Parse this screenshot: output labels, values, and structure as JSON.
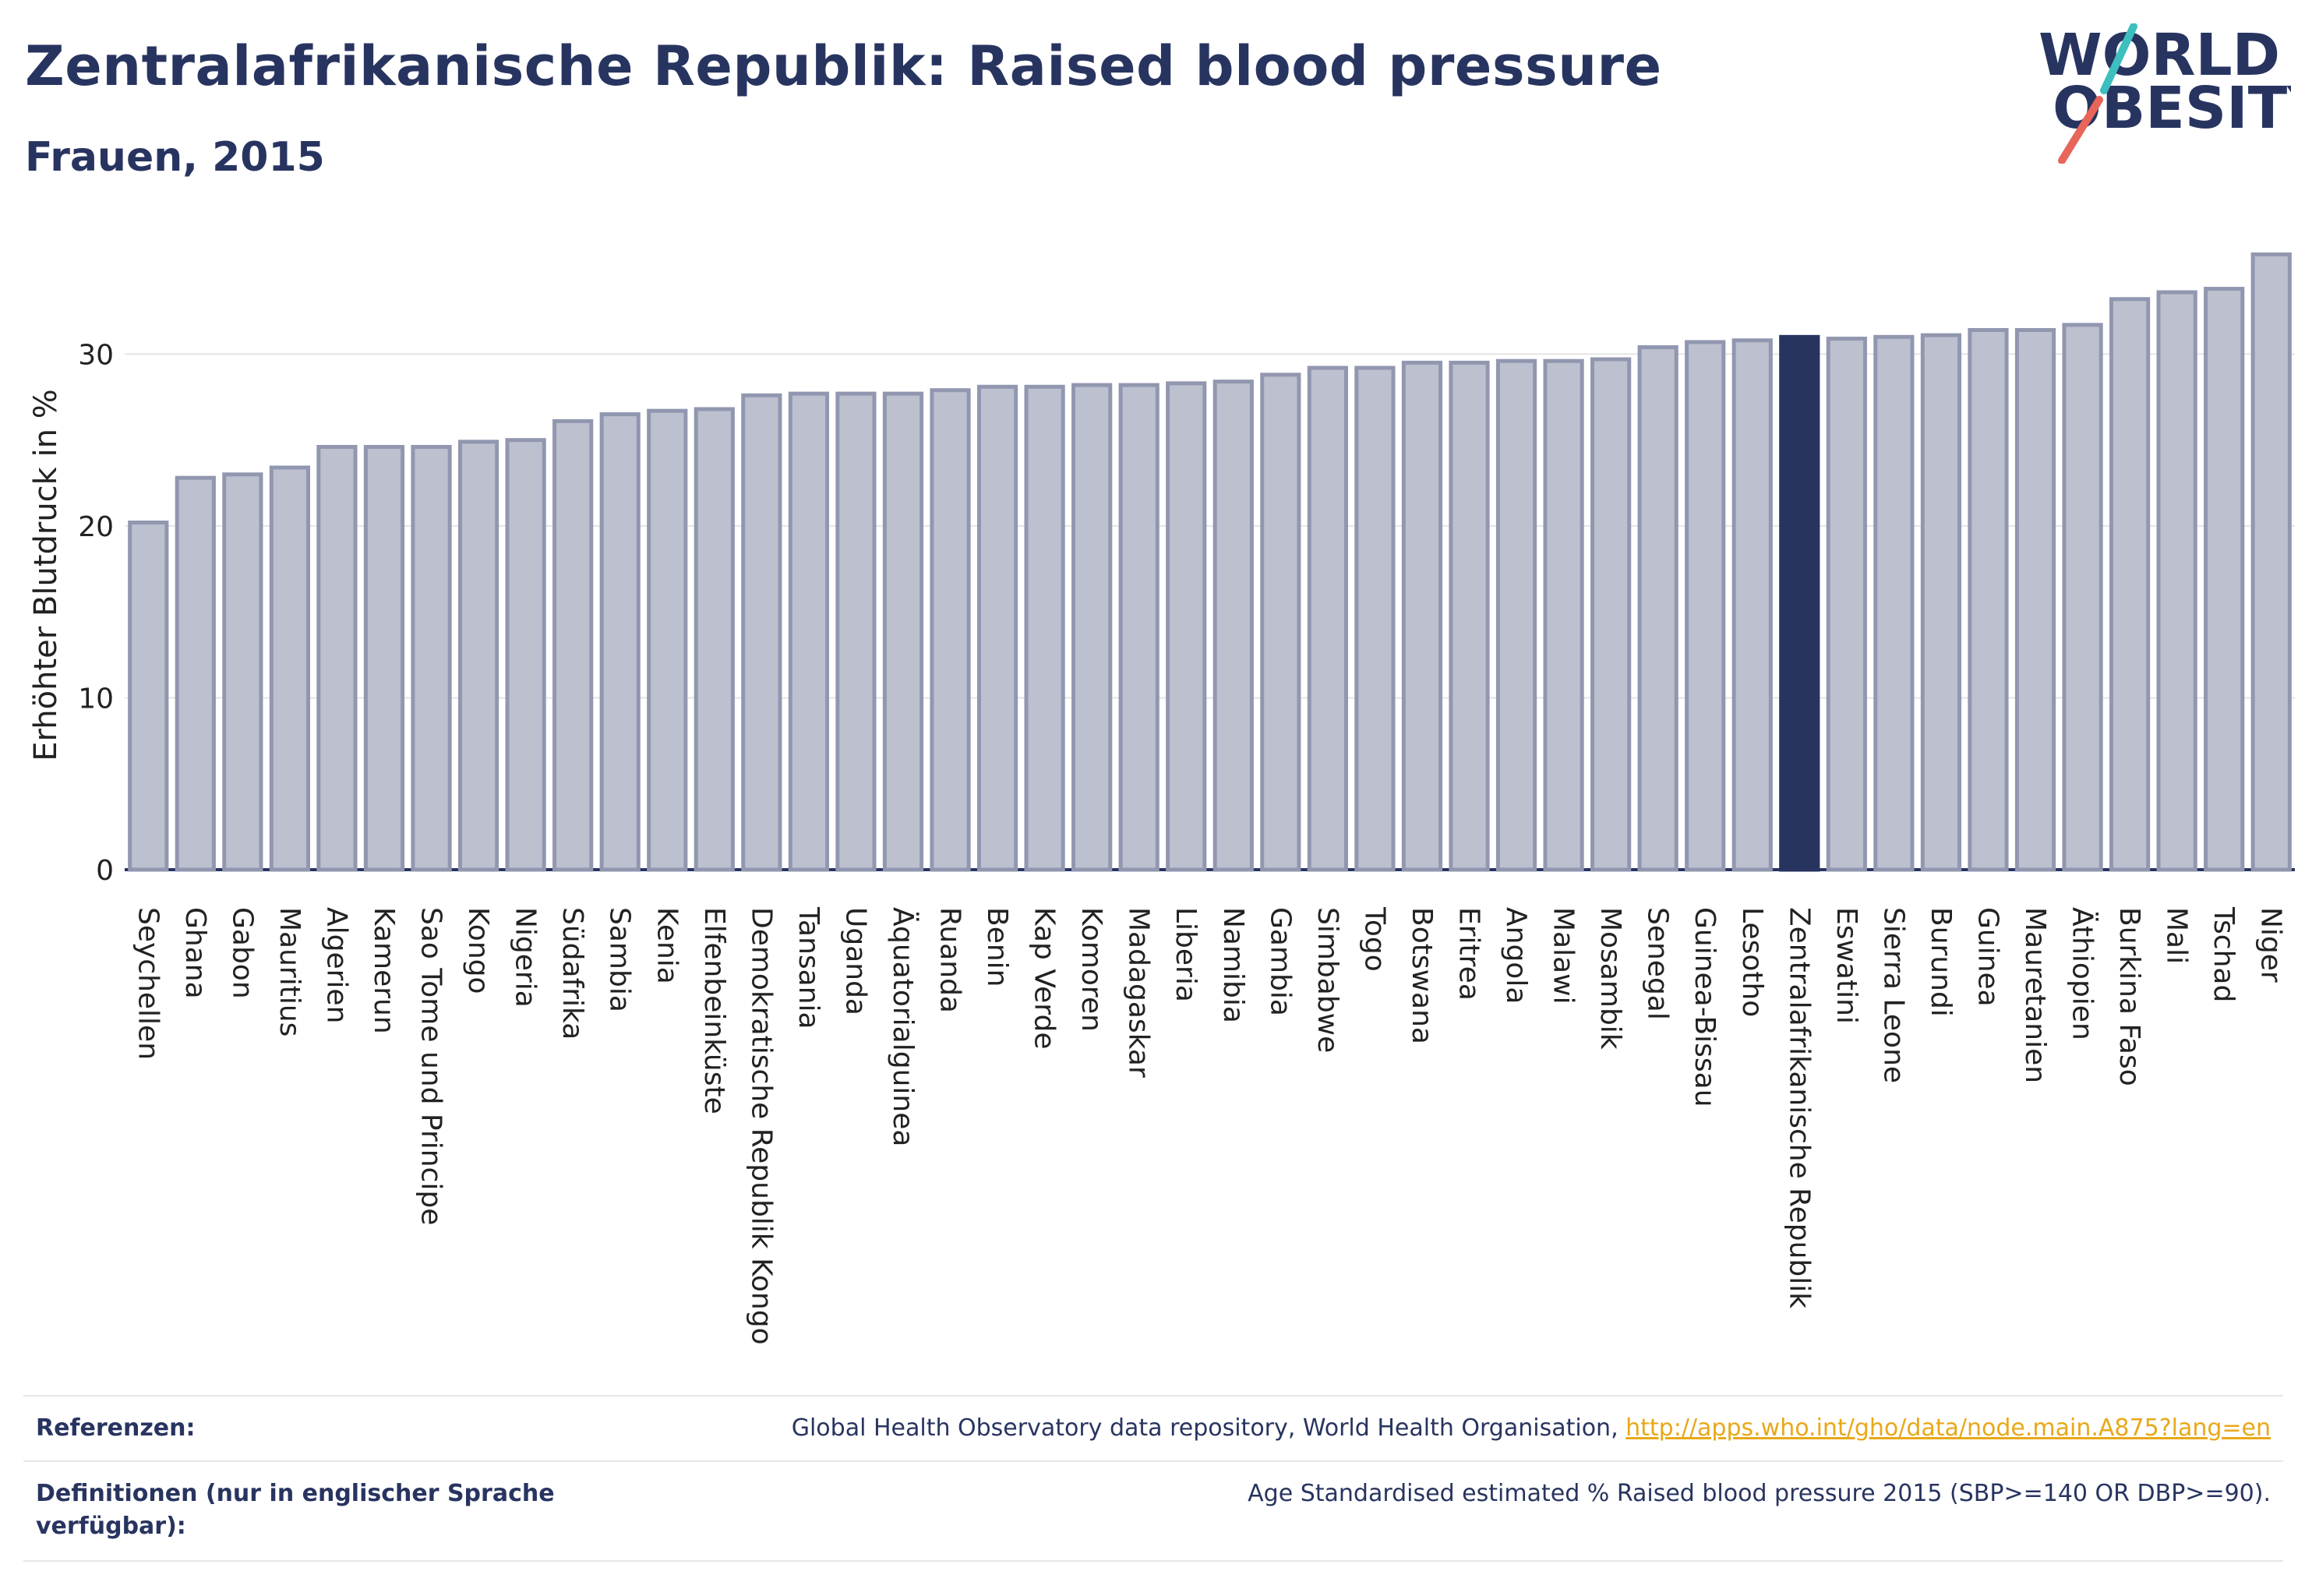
{
  "header": {
    "title": "Zentralafrikanische Republik: Raised blood pressure",
    "subtitle": "Frauen, 2015"
  },
  "logo": {
    "line1": "WORLD",
    "line2": "OBESITY",
    "accent_teal": "#3ebfbf",
    "accent_red": "#e8655a"
  },
  "colors": {
    "bar": "#bcc0cf",
    "bar_border": "#9297b0",
    "highlight": "#283460"
  },
  "chart_data": {
    "type": "bar",
    "ylabel": "Erhöhter Blutdruck in %",
    "ylim": [
      0,
      37
    ],
    "yticks": [
      0,
      10,
      20,
      30
    ],
    "grid": true,
    "highlight": "Zentralafrikanische Republik",
    "categories": [
      "Seychellen",
      "Ghana",
      "Gabon",
      "Mauritius",
      "Algerien",
      "Kamerun",
      "Sao Tome und Principe",
      "Kongo",
      "Nigeria",
      "Südafrika",
      "Sambia",
      "Kenia",
      "Elfenbeinküste",
      "Demokratische Republik Kongo",
      "Tansania",
      "Uganda",
      "Äquatorialguinea",
      "Ruanda",
      "Benin",
      "Kap Verde",
      "Komoren",
      "Madagaskar",
      "Liberia",
      "Namibia",
      "Gambia",
      "Simbabwe",
      "Togo",
      "Botswana",
      "Eritrea",
      "Angola",
      "Malawi",
      "Mosambik",
      "Senegal",
      "Guinea-Bissau",
      "Lesotho",
      "Zentralafrikanische Republik",
      "Eswatini",
      "Sierra Leone",
      "Burundi",
      "Guinea",
      "Mauretanien",
      "Äthiopien",
      "Burkina Faso",
      "Mali",
      "Tschad",
      "Niger"
    ],
    "values": [
      20.2,
      22.8,
      23.0,
      23.4,
      24.6,
      24.6,
      24.6,
      24.9,
      25.0,
      26.1,
      26.5,
      26.7,
      26.8,
      27.6,
      27.7,
      27.7,
      27.7,
      27.9,
      28.1,
      28.1,
      28.2,
      28.2,
      28.3,
      28.4,
      28.8,
      29.2,
      29.2,
      29.5,
      29.5,
      29.6,
      29.6,
      29.7,
      30.4,
      30.7,
      30.8,
      31.0,
      30.9,
      31.0,
      31.1,
      31.4,
      31.4,
      31.7,
      33.2,
      33.6,
      33.8,
      35.8
    ]
  },
  "footer": {
    "ref_label": "Referenzen:",
    "ref_text": "Global Health Observatory data repository, World Health Organisation, ",
    "ref_link": "http://apps.who.int/gho/data/node.main.A875?lang=en",
    "def_label": "Definitionen (nur in englischer Sprache verfügbar):",
    "def_text": "Age Standardised estimated % Raised blood pressure 2015 (SBP>=140 OR DBP>=90)."
  }
}
